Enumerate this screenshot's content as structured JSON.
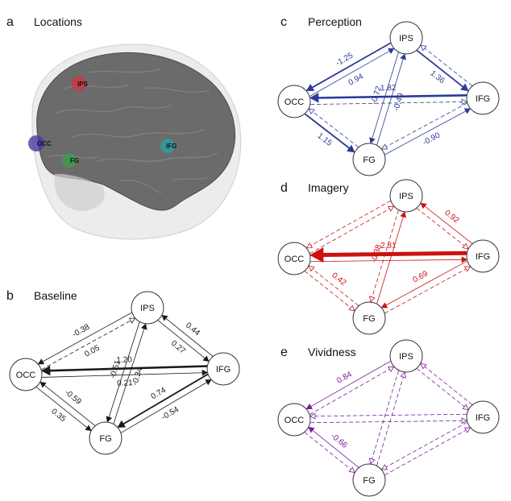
{
  "colors": {
    "baseline": "#1a1a1a",
    "perception": "#2b3a9a",
    "imagery": "#cc1111",
    "vividness": "#7a1a9a",
    "brain": "#6d6d6d",
    "marker_ips": "#d9303a",
    "marker_occ": "#4a3aa0",
    "marker_fg": "#3aa04a",
    "marker_ifg": "#2aa0a0"
  },
  "panels": {
    "a": {
      "letter": "a",
      "title": "Locations",
      "markers": {
        "ips": "IPS",
        "occ": "OCC",
        "fg": "FG",
        "ifg": "IFG"
      }
    },
    "b": {
      "letter": "b",
      "title": "Baseline",
      "nodes": {
        "ips": "IPS",
        "occ": "OCC",
        "fg": "FG",
        "ifg": "IFG"
      },
      "edges": [
        {
          "from": "ips",
          "to": "occ",
          "value": "-0.38",
          "style": "thin"
        },
        {
          "from": "occ",
          "to": "ips",
          "value": "0.05",
          "style": "dashed"
        },
        {
          "from": "ips",
          "to": "ifg",
          "value": "0.27",
          "style": "thin"
        },
        {
          "from": "ifg",
          "to": "ips",
          "value": "0.44",
          "style": "thin"
        },
        {
          "from": "ifg",
          "to": "occ",
          "value": "1.20",
          "style": "thick"
        },
        {
          "from": "occ",
          "to": "ifg",
          "value": "0.21",
          "style": "thin"
        },
        {
          "from": "ips",
          "to": "fg",
          "value": "-0.51",
          "style": "thin"
        },
        {
          "from": "fg",
          "to": "ips",
          "value": "-0.34",
          "style": "thin"
        },
        {
          "from": "occ",
          "to": "fg",
          "value": "0.35",
          "style": "thin"
        },
        {
          "from": "fg",
          "to": "occ",
          "value": "-0.59",
          "style": "thin"
        },
        {
          "from": "fg",
          "to": "ifg",
          "value": "-0.54",
          "style": "thin"
        },
        {
          "from": "ifg",
          "to": "fg",
          "value": "0.74",
          "style": "medium"
        }
      ]
    },
    "c": {
      "letter": "c",
      "title": "Perception",
      "nodes": {
        "ips": "IPS",
        "occ": "OCC",
        "fg": "FG",
        "ifg": "IFG"
      },
      "edges": [
        {
          "from": "ips",
          "to": "occ",
          "value": "-1.25",
          "style": "medium"
        },
        {
          "from": "occ",
          "to": "ips",
          "value": "0.94",
          "style": "thin"
        },
        {
          "from": "ips",
          "to": "ifg",
          "value": "1.36",
          "style": "medium"
        },
        {
          "from": "ifg",
          "to": "ips",
          "value": "",
          "style": "dashed"
        },
        {
          "from": "ifg",
          "to": "occ",
          "value": "1.82",
          "style": "thick"
        },
        {
          "from": "occ",
          "to": "ifg",
          "value": "",
          "style": "dashed"
        },
        {
          "from": "ips",
          "to": "fg",
          "value": "-0.72",
          "style": "thin"
        },
        {
          "from": "fg",
          "to": "ips",
          "value": "-0.49",
          "style": "thin"
        },
        {
          "from": "occ",
          "to": "fg",
          "value": "1.15",
          "style": "medium"
        },
        {
          "from": "fg",
          "to": "occ",
          "value": "",
          "style": "dashed"
        },
        {
          "from": "fg",
          "to": "ifg",
          "value": "-0.90",
          "style": "thin"
        },
        {
          "from": "ifg",
          "to": "fg",
          "value": "",
          "style": "dashed"
        }
      ]
    },
    "d": {
      "letter": "d",
      "title": "Imagery",
      "nodes": {
        "ips": "IPS",
        "occ": "OCC",
        "fg": "FG",
        "ifg": "IFG"
      },
      "edges": [
        {
          "from": "ips",
          "to": "occ",
          "value": "",
          "style": "dashed"
        },
        {
          "from": "occ",
          "to": "ips",
          "value": "",
          "style": "dashed"
        },
        {
          "from": "ifg",
          "to": "ips",
          "value": "0.92",
          "style": "thin"
        },
        {
          "from": "ips",
          "to": "ifg",
          "value": "",
          "style": "dashed"
        },
        {
          "from": "ifg",
          "to": "occ",
          "value": "2.81",
          "style": "huge"
        },
        {
          "from": "occ",
          "to": "ifg",
          "value": "",
          "style": "thin"
        },
        {
          "from": "ips",
          "to": "fg",
          "value": "-0.38",
          "style": "dashed"
        },
        {
          "from": "fg",
          "to": "ips",
          "value": "",
          "style": "thin"
        },
        {
          "from": "fg",
          "to": "occ",
          "value": "0.42",
          "style": "dashed"
        },
        {
          "from": "occ",
          "to": "fg",
          "value": "",
          "style": "dashed"
        },
        {
          "from": "ifg",
          "to": "fg",
          "value": "0.69",
          "style": "thin"
        },
        {
          "from": "fg",
          "to": "ifg",
          "value": "",
          "style": "dashed"
        }
      ]
    },
    "e": {
      "letter": "e",
      "title": "Vividness",
      "nodes": {
        "ips": "IPS",
        "occ": "OCC",
        "fg": "FG",
        "ifg": "IFG"
      },
      "edges": [
        {
          "from": "ips",
          "to": "occ",
          "value": "0.84",
          "style": "thin"
        },
        {
          "from": "occ",
          "to": "ips",
          "value": "",
          "style": "dashed"
        },
        {
          "from": "ips",
          "to": "ifg",
          "value": "",
          "style": "dashed"
        },
        {
          "from": "ifg",
          "to": "ips",
          "value": "",
          "style": "dashed"
        },
        {
          "from": "ifg",
          "to": "occ",
          "value": "",
          "style": "dashed"
        },
        {
          "from": "occ",
          "to": "ifg",
          "value": "",
          "style": "dashed"
        },
        {
          "from": "ips",
          "to": "fg",
          "value": "",
          "style": "dashed"
        },
        {
          "from": "fg",
          "to": "ips",
          "value": "",
          "style": "dashed"
        },
        {
          "from": "occ",
          "to": "fg",
          "value": "",
          "style": "dashed"
        },
        {
          "from": "fg",
          "to": "occ",
          "value": "-0.66",
          "style": "thin"
        },
        {
          "from": "fg",
          "to": "ifg",
          "value": "",
          "style": "dashed"
        },
        {
          "from": "ifg",
          "to": "fg",
          "value": "",
          "style": "dashed"
        }
      ]
    }
  }
}
